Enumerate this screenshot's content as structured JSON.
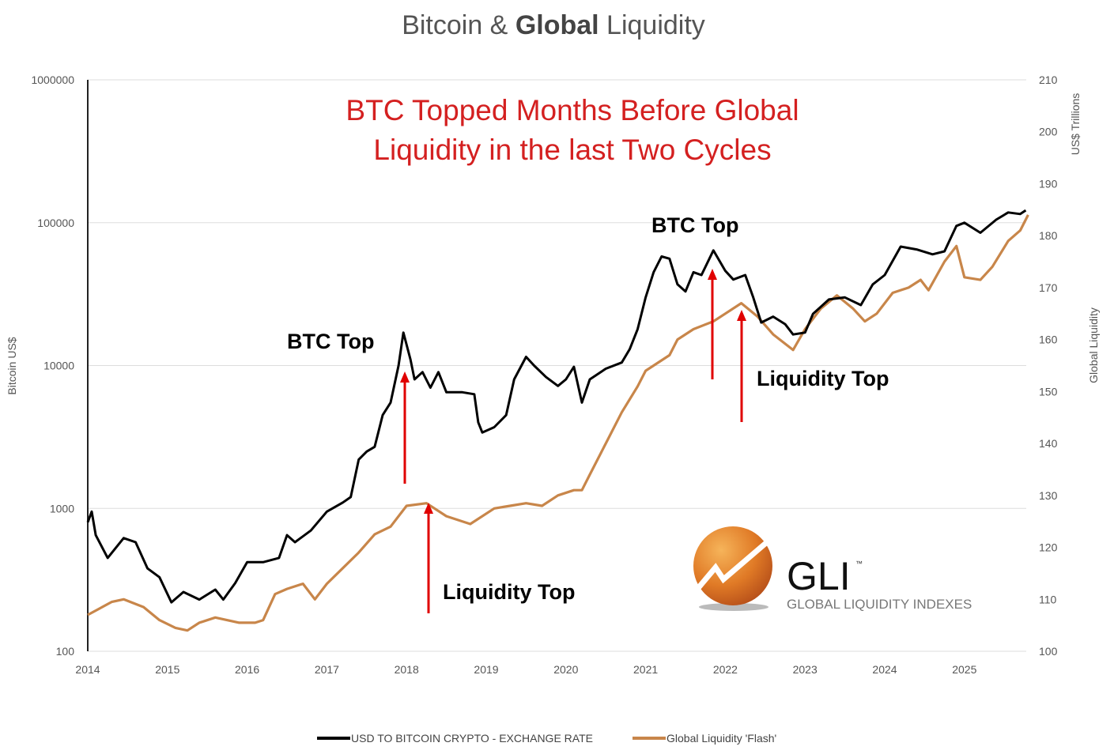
{
  "chart_data": {
    "type": "line",
    "title_prefix": "Bitcoin & ",
    "title_bold": "Global",
    "title_suffix": " Liquidity",
    "subtitle_lines": [
      "BTC Topped Months Before Global",
      "Liquidity in the last Two Cycles"
    ],
    "ylabel_left": "Bitcoin US$",
    "ylabel_right_units": "US$ Trillions",
    "ylabel_right": "Global Liquidity",
    "left_axis": {
      "scale": "log",
      "range": [
        100,
        1000000
      ],
      "ticks": [
        "1000000",
        "100000",
        "10000",
        "1000",
        "100"
      ]
    },
    "right_axis": {
      "scale": "linear",
      "range": [
        100,
        210
      ],
      "ticks": [
        "210",
        "200",
        "190",
        "180",
        "170",
        "160",
        "150",
        "140",
        "130",
        "120",
        "110",
        "100"
      ]
    },
    "x_ticks": [
      "2014",
      "2015",
      "2016",
      "2017",
      "2018",
      "2019",
      "2020",
      "2021",
      "2022",
      "2023",
      "2024",
      "2025"
    ],
    "x_range": [
      2014,
      2025.78
    ],
    "grid": "horizontal",
    "legend_position": "bottom",
    "colors": {
      "btc": "#000000",
      "liquidity": "#c8864a",
      "subtitle": "#d42020",
      "arrow": "#e00000"
    },
    "series": [
      {
        "name": "USD TO BITCOIN CRYPTO - EXCHANGE RATE",
        "axis": "left",
        "x": [
          2014.0,
          2014.05,
          2014.1,
          2014.25,
          2014.45,
          2014.6,
          2014.75,
          2014.9,
          2015.05,
          2015.2,
          2015.4,
          2015.6,
          2015.7,
          2015.85,
          2016.0,
          2016.2,
          2016.4,
          2016.5,
          2016.6,
          2016.8,
          2017.0,
          2017.2,
          2017.3,
          2017.4,
          2017.5,
          2017.6,
          2017.7,
          2017.8,
          2017.9,
          2017.96,
          2018.05,
          2018.1,
          2018.2,
          2018.3,
          2018.4,
          2018.5,
          2018.7,
          2018.85,
          2018.9,
          2018.95,
          2019.1,
          2019.25,
          2019.35,
          2019.5,
          2019.6,
          2019.75,
          2019.9,
          2020.0,
          2020.1,
          2020.2,
          2020.3,
          2020.5,
          2020.7,
          2020.8,
          2020.9,
          2021.0,
          2021.1,
          2021.2,
          2021.3,
          2021.4,
          2021.5,
          2021.6,
          2021.7,
          2021.85,
          2022.0,
          2022.1,
          2022.25,
          2022.35,
          2022.45,
          2022.6,
          2022.75,
          2022.85,
          2023.0,
          2023.1,
          2023.3,
          2023.5,
          2023.7,
          2023.85,
          2024.0,
          2024.2,
          2024.4,
          2024.6,
          2024.75,
          2024.9,
          2025.0,
          2025.2,
          2025.4,
          2025.55,
          2025.7,
          2025.77
        ],
        "values": [
          800,
          950,
          650,
          450,
          620,
          580,
          380,
          330,
          220,
          260,
          230,
          270,
          230,
          300,
          420,
          420,
          450,
          650,
          580,
          700,
          950,
          1100,
          1200,
          2200,
          2500,
          2700,
          4500,
          5500,
          10000,
          17000,
          11000,
          8000,
          9000,
          7000,
          9000,
          6500,
          6500,
          6300,
          4000,
          3400,
          3700,
          4500,
          8000,
          11500,
          10000,
          8300,
          7200,
          8000,
          9800,
          5500,
          8000,
          9500,
          10500,
          13000,
          18000,
          30000,
          45000,
          58000,
          56000,
          37000,
          33000,
          45000,
          43000,
          64000,
          46000,
          40000,
          43000,
          30000,
          20000,
          22000,
          19500,
          16500,
          17000,
          23000,
          29000,
          30000,
          26500,
          37000,
          43000,
          68000,
          65000,
          60000,
          63000,
          95000,
          100000,
          85000,
          105000,
          118000,
          115000,
          122000
        ]
      },
      {
        "name": "Global Liquidity 'Flash'",
        "axis": "right",
        "x": [
          2014.0,
          2014.3,
          2014.45,
          2014.7,
          2014.9,
          2015.1,
          2015.25,
          2015.4,
          2015.6,
          2015.9,
          2016.1,
          2016.2,
          2016.35,
          2016.5,
          2016.7,
          2016.85,
          2017.0,
          2017.2,
          2017.4,
          2017.6,
          2017.8,
          2018.0,
          2018.25,
          2018.5,
          2018.8,
          2019.1,
          2019.3,
          2019.5,
          2019.7,
          2019.9,
          2020.1,
          2020.2,
          2020.3,
          2020.5,
          2020.7,
          2020.9,
          2021.0,
          2021.3,
          2021.4,
          2021.6,
          2021.85,
          2022.0,
          2022.2,
          2022.4,
          2022.6,
          2022.85,
          2023.0,
          2023.2,
          2023.4,
          2023.6,
          2023.75,
          2023.9,
          2024.1,
          2024.3,
          2024.45,
          2024.55,
          2024.75,
          2024.9,
          2025.0,
          2025.2,
          2025.35,
          2025.55,
          2025.7,
          2025.8
        ],
        "values": [
          107,
          109.5,
          110,
          108.5,
          106,
          104.5,
          104,
          105.5,
          106.5,
          105.5,
          105.5,
          106,
          111,
          112,
          113,
          110,
          113,
          116,
          119,
          122.5,
          124,
          128,
          128.5,
          126,
          124.5,
          127.5,
          128,
          128.5,
          128,
          130,
          131,
          131,
          134,
          140,
          146,
          151,
          154,
          157,
          160,
          162,
          163.5,
          165,
          167,
          164.5,
          161,
          158,
          162,
          166,
          168.5,
          166,
          163.5,
          165,
          169,
          170,
          171.5,
          169.5,
          175,
          178,
          172,
          171.5,
          174,
          179,
          181,
          184
        ]
      }
    ],
    "annotations": [
      {
        "text": "BTC Top",
        "x": 2017.96
      },
      {
        "text": "Liquidity Top",
        "x": 2018.25
      },
      {
        "text": "BTC Top",
        "x": 2021.85
      },
      {
        "text": "Liquidity Top",
        "x": 2022.2
      }
    ]
  },
  "logo": {
    "mark": "GLI",
    "tm": "™",
    "name": "GLOBAL LIQUIDITY INDEXES"
  }
}
